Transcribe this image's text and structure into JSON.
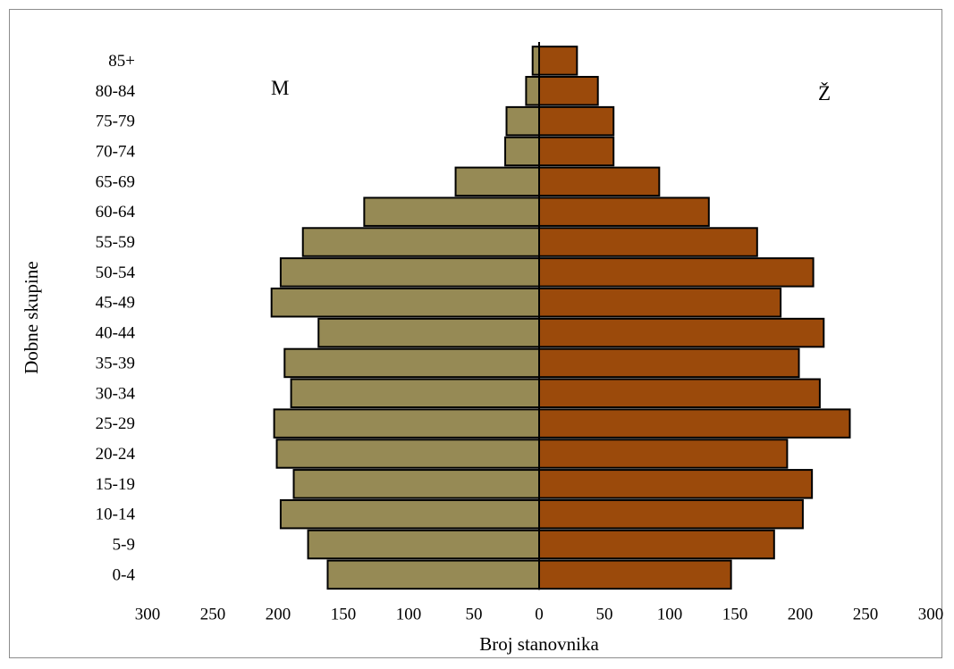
{
  "chart_data": {
    "type": "bar",
    "orientation": "horizontal",
    "layout": "population-pyramid",
    "categories": [
      "0-4",
      "5-9",
      "10-14",
      "15-19",
      "20-24",
      "25-29",
      "30-34",
      "35-39",
      "40-44",
      "45-49",
      "50-54",
      "55-59",
      "60-64",
      "65-69",
      "70-74",
      "75-79",
      "80-84",
      "85+"
    ],
    "series": [
      {
        "name": "M",
        "color": "#968a55",
        "values": [
          162,
          177,
          198,
          188,
          201,
          203,
          190,
          195,
          169,
          205,
          198,
          181,
          134,
          64,
          26,
          25,
          10,
          5
        ]
      },
      {
        "name": "Ž",
        "color": "#9b4a0b",
        "values": [
          147,
          180,
          202,
          209,
          190,
          238,
          215,
          199,
          218,
          185,
          210,
          167,
          130,
          92,
          57,
          57,
          45,
          29
        ]
      }
    ],
    "xlabel": "Broj stanovnika",
    "ylabel": "Dobne skupine",
    "xlim": [
      -300,
      300
    ],
    "xticks": [
      -300,
      -250,
      -200,
      -150,
      -100,
      -50,
      0,
      50,
      100,
      150,
      200,
      250,
      300
    ],
    "xtick_labels": [
      "300",
      "250",
      "200",
      "150",
      "100",
      "50",
      "0",
      "50",
      "100",
      "150",
      "200",
      "250",
      "300"
    ],
    "grid": false,
    "legend": "none"
  }
}
